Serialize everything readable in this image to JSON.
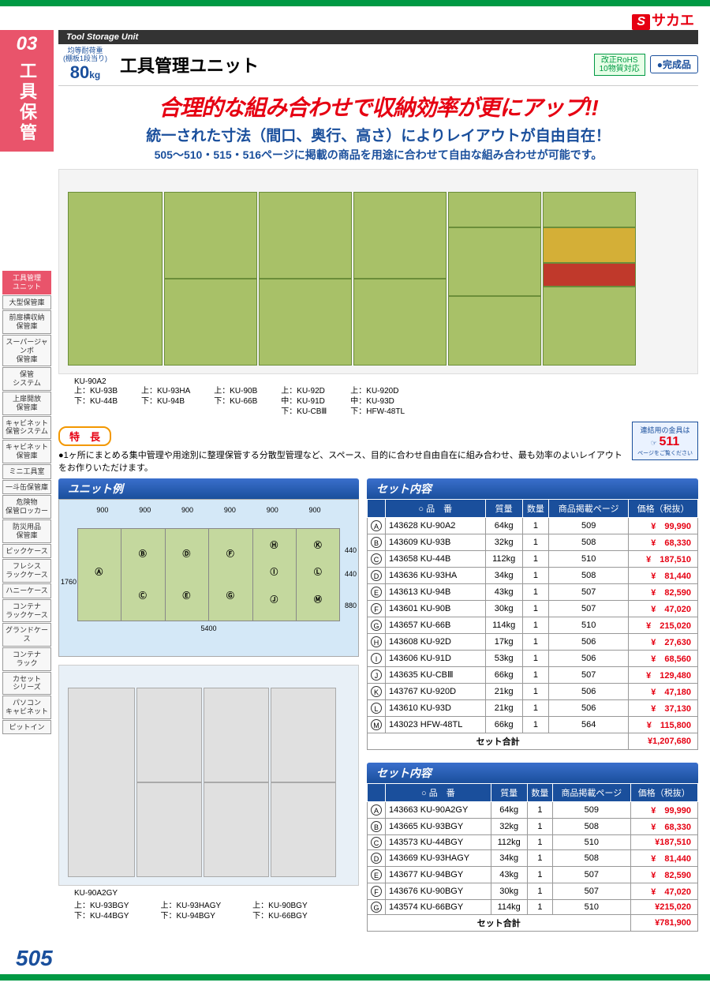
{
  "brand": {
    "s": "S",
    "name": "サカエ"
  },
  "topbar": {
    "section_en": "Tool Storage Unit"
  },
  "section": {
    "num": "03",
    "title_v": "工具保管"
  },
  "sidebar_cats": [
    {
      "label": "工具管理\nユニット",
      "active": true
    },
    {
      "label": "大型保管庫"
    },
    {
      "label": "前扉横収納\n保管庫"
    },
    {
      "label": "スーパージャンボ\n保管庫"
    },
    {
      "label": "保管\nシステム"
    },
    {
      "label": "上扉開放\n保管庫"
    },
    {
      "label": "キャビネット\n保管システム"
    },
    {
      "label": "キャビネット\n保管庫"
    },
    {
      "label": "ミニ工具室"
    },
    {
      "label": "一斗缶保管庫"
    },
    {
      "label": "危険物\n保管ロッカー"
    },
    {
      "label": "防災用品\n保管庫"
    },
    {
      "label": "ピックケース"
    },
    {
      "label": "フレシス\nラックケース"
    },
    {
      "label": "ハニーケース"
    },
    {
      "label": "コンテナ\nラックケース"
    },
    {
      "label": "グランドケース"
    },
    {
      "label": "コンテナ\nラック"
    },
    {
      "label": "カセット\nシリーズ"
    },
    {
      "label": "パソコン\nキャビネット"
    },
    {
      "label": "ピットイン"
    }
  ],
  "header": {
    "load_label": "均等耐荷重\n (棚板1段当り)",
    "load_value": "80",
    "load_unit": "kg",
    "product_title": "工具管理ユニット",
    "rohs": "改正RoHS\n10物質対応",
    "complete": "●完成品"
  },
  "headlines": {
    "h1": "合理的な組み合わせで収納効率が更にアップ!!",
    "h2": "統一された寸法（間口、奥行、高さ）によりレイアウトが自由自在！",
    "h3": "505～510・515・516ページに掲載の商品を用途に合わせて自由な組み合わせが可能です。"
  },
  "img_first_label": "KU-90A2",
  "img_labels": [
    {
      "lines": [
        "上：KU-93B",
        "下：KU-44B"
      ]
    },
    {
      "lines": [
        "上：KU-93HA",
        "下：KU-94B"
      ]
    },
    {
      "lines": [
        "上：KU-90B",
        "下：KU-66B"
      ]
    },
    {
      "lines": [
        "上：KU-92D",
        "中：KU-91D",
        "下：KU-CBⅢ"
      ]
    },
    {
      "lines": [
        "上：KU-920D",
        "中：KU-93D",
        "下：HFW-48TL"
      ]
    }
  ],
  "feature": {
    "title": "特　長",
    "text": "●1ヶ所にまとめる集中管理や用途別に整理保管する分散型管理など、スペース、目的に合わせ自由自在に組み合わせ、最も効率のよいレイアウトをお作りいただけます。",
    "link_top": "連結用の金具は",
    "link_page": "511",
    "link_bottom": "ページをご覧ください"
  },
  "unit_example_title": "ユニット例",
  "set_title": "セット内容",
  "diagram": {
    "total_h": "1760",
    "total_w": "5400",
    "col_w": "900",
    "h1": "440",
    "h2": "440",
    "h3": "880",
    "letters": [
      "A",
      "B",
      "C",
      "D",
      "E",
      "F",
      "G",
      "H",
      "I",
      "J",
      "K",
      "L",
      "M"
    ]
  },
  "table1": {
    "headers": [
      "",
      "○ 品　番",
      "質量",
      "数量",
      "商品掲載ページ",
      "価格（税抜）"
    ],
    "rows": [
      {
        "l": "A",
        "sku": "143628",
        "model": "KU-90A2",
        "mass": "64kg",
        "qty": "1",
        "pg": "509",
        "price": "¥　99,990"
      },
      {
        "l": "B",
        "sku": "143609",
        "model": "KU-93B",
        "mass": "32kg",
        "qty": "1",
        "pg": "508",
        "price": "¥　68,330"
      },
      {
        "l": "C",
        "sku": "143658",
        "model": "KU-44B",
        "mass": "112kg",
        "qty": "1",
        "pg": "510",
        "price": "¥　187,510"
      },
      {
        "l": "D",
        "sku": "143636",
        "model": "KU-93HA",
        "mass": "34kg",
        "qty": "1",
        "pg": "508",
        "price": "¥　81,440"
      },
      {
        "l": "E",
        "sku": "143613",
        "model": "KU-94B",
        "mass": "43kg",
        "qty": "1",
        "pg": "507",
        "price": "¥　82,590"
      },
      {
        "l": "F",
        "sku": "143601",
        "model": "KU-90B",
        "mass": "30kg",
        "qty": "1",
        "pg": "507",
        "price": "¥　47,020"
      },
      {
        "l": "G",
        "sku": "143657",
        "model": "KU-66B",
        "mass": "114kg",
        "qty": "1",
        "pg": "510",
        "price": "¥　215,020"
      },
      {
        "l": "H",
        "sku": "143608",
        "model": "KU-92D",
        "mass": "17kg",
        "qty": "1",
        "pg": "506",
        "price": "¥　27,630"
      },
      {
        "l": "I",
        "sku": "143606",
        "model": "KU-91D",
        "mass": "53kg",
        "qty": "1",
        "pg": "506",
        "price": "¥　68,560"
      },
      {
        "l": "J",
        "sku": "143635",
        "model": "KU-CBⅢ",
        "mass": "66kg",
        "qty": "1",
        "pg": "507",
        "price": "¥　129,480"
      },
      {
        "l": "K",
        "sku": "143767",
        "model": "KU-920D",
        "mass": "21kg",
        "qty": "1",
        "pg": "506",
        "price": "¥　47,180"
      },
      {
        "l": "L",
        "sku": "143610",
        "model": "KU-93D",
        "mass": "21kg",
        "qty": "1",
        "pg": "506",
        "price": "¥　37,130"
      },
      {
        "l": "M",
        "sku": "143023",
        "model": "HFW-48TL",
        "mass": "66kg",
        "qty": "1",
        "pg": "564",
        "price": "¥　115,800"
      }
    ],
    "total_label": "セット合計",
    "total_price": "¥1,207,680"
  },
  "table2": {
    "rows": [
      {
        "l": "A",
        "sku": "143663",
        "model": "KU-90A2GY",
        "mass": "64kg",
        "qty": "1",
        "pg": "509",
        "price": "¥　99,990"
      },
      {
        "l": "B",
        "sku": "143665",
        "model": "KU-93BGY",
        "mass": "32kg",
        "qty": "1",
        "pg": "508",
        "price": "¥　68,330"
      },
      {
        "l": "C",
        "sku": "143573",
        "model": "KU-44BGY",
        "mass": "112kg",
        "qty": "1",
        "pg": "510",
        "price": "¥187,510"
      },
      {
        "l": "D",
        "sku": "143669",
        "model": "KU-93HAGY",
        "mass": "34kg",
        "qty": "1",
        "pg": "508",
        "price": "¥　81,440"
      },
      {
        "l": "E",
        "sku": "143677",
        "model": "KU-94BGY",
        "mass": "43kg",
        "qty": "1",
        "pg": "507",
        "price": "¥　82,590"
      },
      {
        "l": "F",
        "sku": "143676",
        "model": "KU-90BGY",
        "mass": "30kg",
        "qty": "1",
        "pg": "507",
        "price": "¥　47,020"
      },
      {
        "l": "G",
        "sku": "143574",
        "model": "KU-66BGY",
        "mass": "114kg",
        "qty": "1",
        "pg": "510",
        "price": "¥215,020"
      }
    ],
    "total_label": "セット合計",
    "total_price": "¥781,900"
  },
  "gray_first_label": "KU-90A2GY",
  "gray_labels": [
    {
      "lines": [
        "上：KU-93BGY",
        "下：KU-44BGY"
      ]
    },
    {
      "lines": [
        "上：KU-93HAGY",
        "下：KU-94BGY"
      ]
    },
    {
      "lines": [
        "上：KU-90BGY",
        "下：KU-66BGY"
      ]
    }
  ],
  "page_num": "505"
}
